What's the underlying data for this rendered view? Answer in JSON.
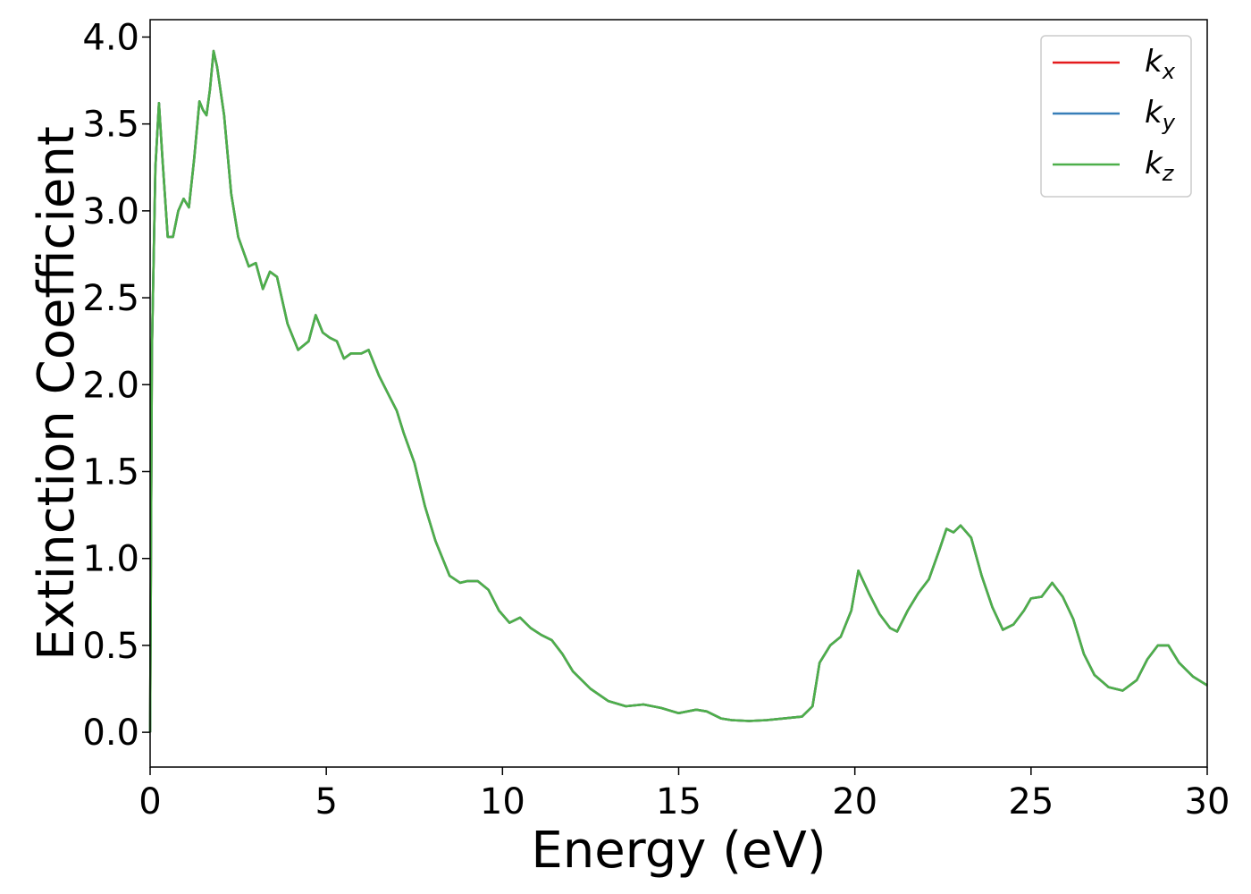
{
  "chart_data": {
    "type": "line",
    "xlabel": "Energy (eV)",
    "ylabel": "Extinction Coefficient",
    "xlim": [
      0,
      30
    ],
    "ylim": [
      -0.2,
      4.1
    ],
    "xticks": [
      "0",
      "5",
      "10",
      "15",
      "20",
      "25",
      "30"
    ],
    "yticks": [
      "0.0",
      "0.5",
      "1.0",
      "1.5",
      "2.0",
      "2.5",
      "3.0",
      "3.5",
      "4.0"
    ],
    "grid": false,
    "legend_position": "top-right",
    "series": [
      {
        "name": "k",
        "subscript": "x",
        "color": "#e41a1c"
      },
      {
        "name": "k",
        "subscript": "y",
        "color": "#377eb8"
      },
      {
        "name": "k",
        "subscript": "z",
        "color": "#4daf4a"
      }
    ],
    "x": [
      0,
      0.05,
      0.15,
      0.25,
      0.35,
      0.5,
      0.65,
      0.8,
      0.95,
      1.1,
      1.25,
      1.4,
      1.5,
      1.6,
      1.7,
      1.8,
      1.9,
      2.1,
      2.3,
      2.5,
      2.8,
      3.0,
      3.2,
      3.4,
      3.6,
      3.9,
      4.2,
      4.5,
      4.7,
      4.9,
      5.1,
      5.3,
      5.5,
      5.7,
      6.0,
      6.2,
      6.5,
      6.8,
      7.0,
      7.2,
      7.5,
      7.8,
      8.1,
      8.5,
      8.8,
      9.0,
      9.3,
      9.6,
      9.9,
      10.2,
      10.5,
      10.8,
      11.1,
      11.4,
      11.7,
      12.0,
      12.5,
      13.0,
      13.5,
      14.0,
      14.5,
      15.0,
      15.5,
      15.8,
      16.2,
      16.5,
      17.0,
      17.5,
      18.0,
      18.5,
      18.8,
      19.0,
      19.3,
      19.6,
      19.9,
      20.1,
      20.4,
      20.7,
      21.0,
      21.2,
      21.5,
      21.8,
      22.1,
      22.4,
      22.6,
      22.8,
      23.0,
      23.3,
      23.6,
      23.9,
      24.2,
      24.5,
      24.8,
      25.0,
      25.3,
      25.6,
      25.9,
      26.2,
      26.5,
      26.8,
      27.2,
      27.6,
      28.0,
      28.3,
      28.6,
      28.9,
      29.2,
      29.6,
      30.0
    ],
    "y": [
      0.0,
      2.2,
      3.25,
      3.62,
      3.3,
      2.85,
      2.85,
      3.0,
      3.07,
      3.02,
      3.3,
      3.63,
      3.58,
      3.55,
      3.7,
      3.92,
      3.83,
      3.55,
      3.1,
      2.85,
      2.68,
      2.7,
      2.55,
      2.65,
      2.62,
      2.35,
      2.2,
      2.25,
      2.4,
      2.3,
      2.27,
      2.25,
      2.15,
      2.18,
      2.18,
      2.2,
      2.05,
      1.93,
      1.85,
      1.72,
      1.55,
      1.3,
      1.1,
      0.9,
      0.86,
      0.87,
      0.87,
      0.82,
      0.7,
      0.63,
      0.66,
      0.6,
      0.56,
      0.53,
      0.45,
      0.35,
      0.25,
      0.18,
      0.15,
      0.16,
      0.14,
      0.11,
      0.13,
      0.12,
      0.08,
      0.07,
      0.065,
      0.07,
      0.08,
      0.09,
      0.15,
      0.4,
      0.5,
      0.55,
      0.7,
      0.93,
      0.8,
      0.68,
      0.6,
      0.58,
      0.7,
      0.8,
      0.88,
      1.05,
      1.17,
      1.15,
      1.19,
      1.12,
      0.9,
      0.72,
      0.59,
      0.62,
      0.7,
      0.77,
      0.78,
      0.86,
      0.78,
      0.65,
      0.45,
      0.33,
      0.26,
      0.24,
      0.3,
      0.42,
      0.5,
      0.5,
      0.4,
      0.32,
      0.27
    ]
  }
}
